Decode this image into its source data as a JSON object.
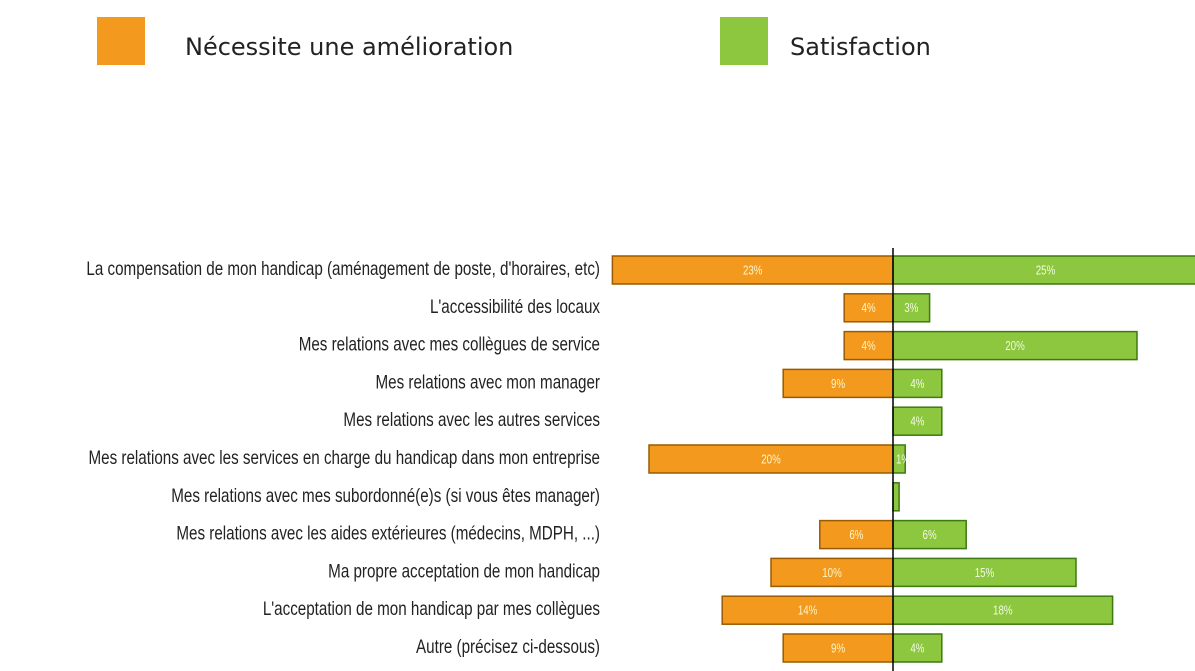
{
  "chart_data": {
    "type": "diverging_bar",
    "categories": [
      "La compensation de mon handicap (aménagement de poste, d'horaires, etc)",
      "L'accessibilité des locaux",
      "Mes relations avec mes collègues de service",
      "Mes relations avec mon manager",
      "Mes relations avec les autres services",
      "Mes relations avec les services en charge du handicap dans mon entreprise",
      "Mes relations avec mes subordonné(e)s (si vous êtes manager)",
      "Mes relations avec les aides extérieures (médecins, MDPH, ...)",
      "Ma propre acceptation de mon handicap",
      "L'acceptation de mon handicap par mes collègues",
      "Autre (précisez ci-dessous)"
    ],
    "series": [
      {
        "name": "Nécessite une amélioration",
        "color": "#f39a1e",
        "direction": "left",
        "values": [
          23,
          4,
          4,
          9,
          0,
          20,
          0,
          6,
          10,
          14,
          9
        ],
        "value_labels": [
          "23%",
          "4%",
          "4%",
          "9%",
          null,
          "20%",
          null,
          "6%",
          "10%",
          "14%",
          "9%"
        ]
      },
      {
        "name": "Satisfaction",
        "color": "#8dc63f",
        "direction": "right",
        "values": [
          25,
          3,
          20,
          4,
          4,
          1,
          0.5,
          6,
          15,
          18,
          4
        ],
        "value_labels": [
          "25%",
          "3%",
          "20%",
          "4%",
          "4%",
          "1%",
          null,
          "6%",
          "15%",
          "18%",
          "4%"
        ]
      }
    ]
  }
}
